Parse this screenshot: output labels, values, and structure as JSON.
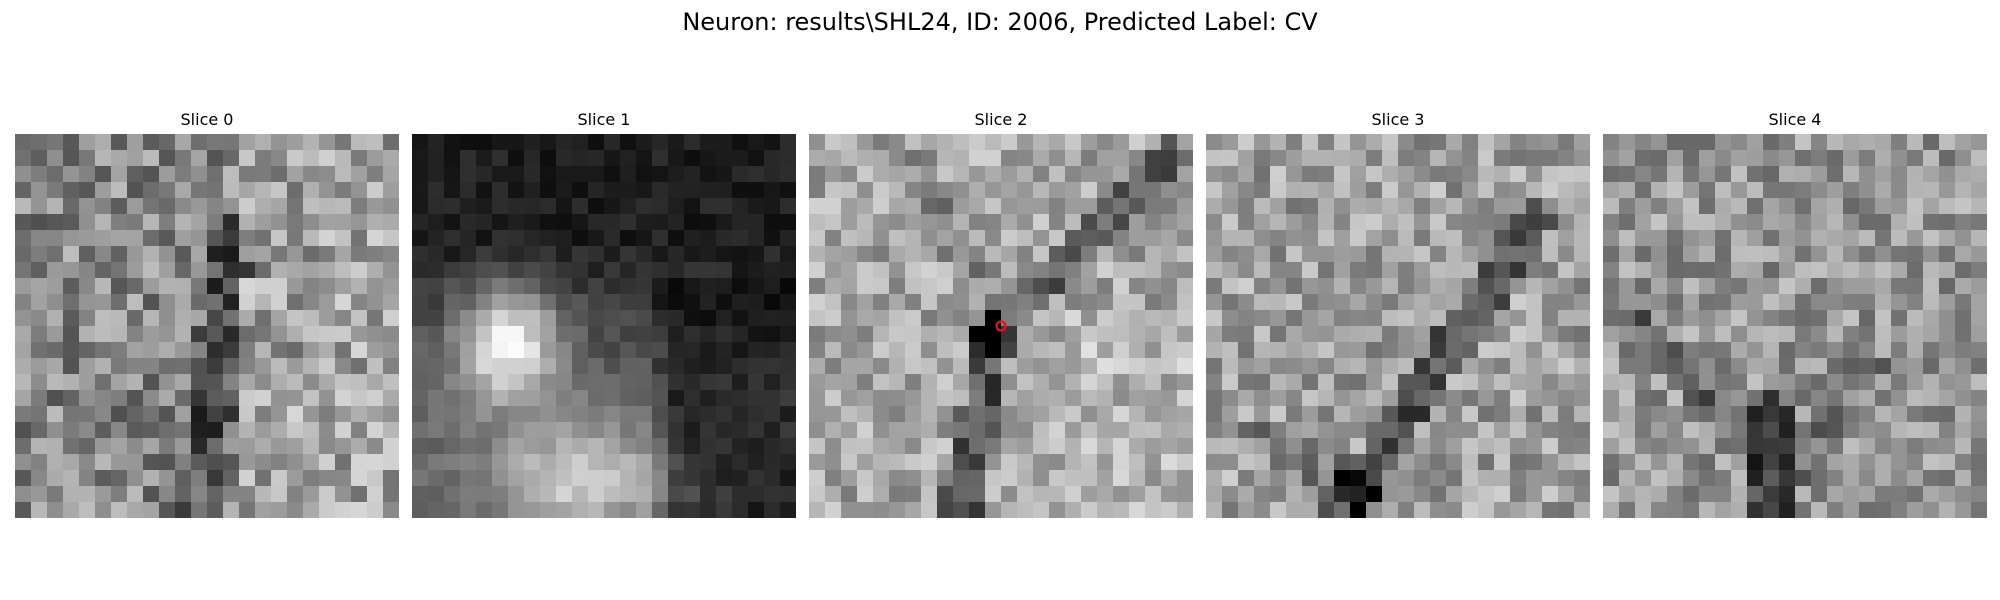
{
  "figure": {
    "title": "Neuron: results\\SHL24, ID: 2006, Predicted Label: CV",
    "marker_color": "#e8121b"
  },
  "slices": [
    {
      "title": "Slice 0"
    },
    {
      "title": "Slice 1"
    },
    {
      "title": "Slice 2",
      "marked": true
    },
    {
      "title": "Slice 3"
    },
    {
      "title": "Slice 4"
    }
  ]
}
